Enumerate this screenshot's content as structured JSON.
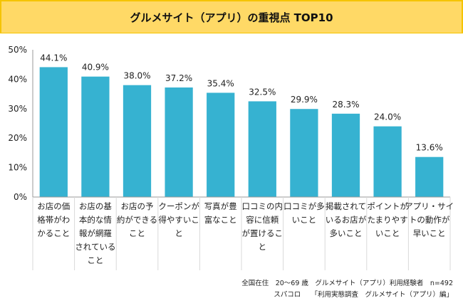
{
  "header": {
    "title": "グルメサイト（アプリ）の重視点 TOP10"
  },
  "chart_data": {
    "type": "bar",
    "title": "グルメサイト（アプリ）の重視点 TOP10",
    "xlabel": "",
    "ylabel": "",
    "ylim": [
      0,
      50
    ],
    "yticks": [
      "0%",
      "10%",
      "20%",
      "30%",
      "40%",
      "50%"
    ],
    "ytick_values": [
      0,
      10,
      20,
      30,
      40,
      50
    ],
    "grid": false,
    "legend": "none",
    "bar_color": "#36b2d1",
    "categories": [
      [
        "お店の価",
        "格帯がわ",
        "かること"
      ],
      [
        "お店の基",
        "本的な情",
        "報が網羅",
        "されている",
        "こと"
      ],
      [
        "お店の予",
        "約ができる",
        "こと"
      ],
      [
        "クーポンが",
        "得やすいこ",
        "と"
      ],
      [
        "写真が豊",
        "富なこと"
      ],
      [
        "口コミの内",
        "容に信頼",
        "が置けるこ",
        "と"
      ],
      [
        "口コミが多",
        "いこと"
      ],
      [
        "掲載されて",
        "いるお店が",
        "多いこと"
      ],
      [
        "ポイントが",
        "たまりやす",
        "いこと"
      ],
      [
        "アプリ・サイ",
        "トの動作が",
        "早いこと"
      ]
    ],
    "values": [
      44.1,
      40.9,
      38.0,
      37.2,
      35.4,
      32.5,
      29.9,
      28.3,
      24.0,
      13.6
    ],
    "value_labels": [
      "44.1%",
      "40.9%",
      "38.0%",
      "37.2%",
      "35.4%",
      "32.5%",
      "29.9%",
      "28.3%",
      "24.0%",
      "13.6%"
    ]
  },
  "footer": {
    "line1": "全国在住　20～69 歳　グルメサイト（アプリ）利用経験者　n=492",
    "line2": "スパコロ　　「利用実態調査　グルメサイト（アプリ）編」"
  }
}
